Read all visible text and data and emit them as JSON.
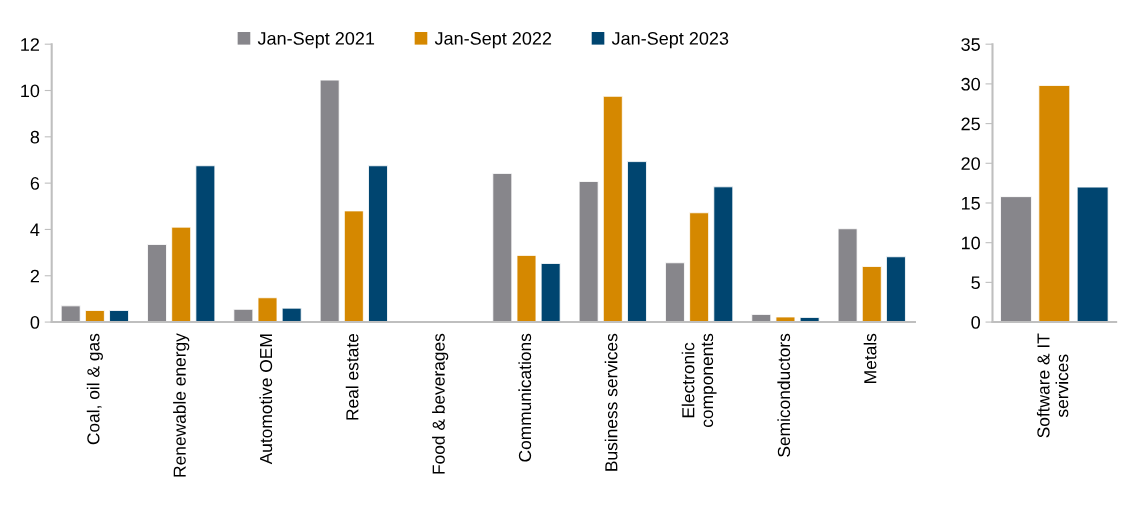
{
  "chart_data": [
    {
      "type": "bar",
      "categories": [
        "Coal, oil & gas",
        "Renewable energy",
        "Automotive OEM",
        "Real estate",
        "Food & beverages",
        "Communications",
        "Business services",
        "Electronic\ncomponents",
        "Semiconductors",
        "Metals"
      ],
      "ylim": [
        0,
        12
      ],
      "yticks": [
        0,
        2,
        4,
        6,
        8,
        10,
        12
      ],
      "legend": "top",
      "series": [
        {
          "name": "Jan-Sept 2021",
          "color": "#87868b",
          "values": [
            0.7,
            3.35,
            0.55,
            10.45,
            null,
            6.42,
            6.07,
            2.56,
            0.33,
            4.03
          ]
        },
        {
          "name": "Jan-Sept 2022",
          "color": "#d58800",
          "values": [
            0.5,
            4.1,
            1.05,
            4.8,
            null,
            2.88,
            9.75,
            4.72,
            0.22,
            2.4
          ]
        },
        {
          "name": "Jan-Sept 2023",
          "color": "#004570",
          "values": [
            0.5,
            6.75,
            0.6,
            6.75,
            null,
            2.53,
            6.93,
            5.84,
            0.2,
            2.82
          ]
        }
      ]
    },
    {
      "type": "bar",
      "categories": [
        "Software & IT\nservices"
      ],
      "ylim": [
        0,
        35
      ],
      "yticks": [
        0,
        5,
        10,
        15,
        20,
        25,
        30,
        35
      ],
      "series": [
        {
          "color": "#87868b",
          "values": [
            15.8
          ]
        },
        {
          "color": "#d58800",
          "values": [
            29.8
          ]
        },
        {
          "color": "#004570",
          "values": [
            17.0
          ]
        }
      ]
    }
  ]
}
